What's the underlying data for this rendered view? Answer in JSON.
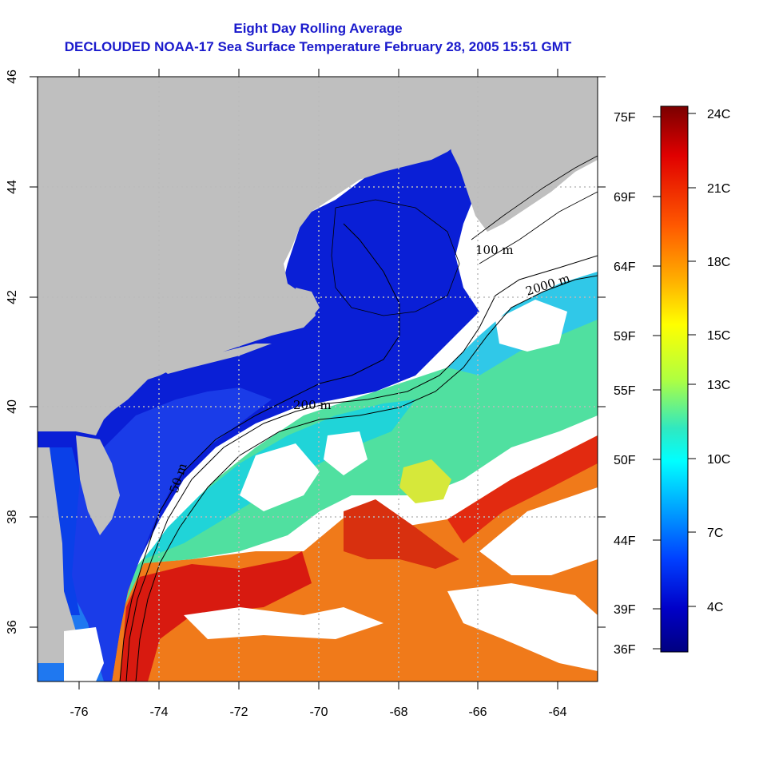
{
  "title_line1": "Eight Day Rolling Average",
  "title_line2": "DECLOUDED NOAA-17 Sea Surface Temperature February 28, 2005 15:51 GMT",
  "map": {
    "lon_range": [
      -77,
      -63
    ],
    "lat_range": [
      35,
      46
    ],
    "x_ticks": [
      "-76",
      "-74",
      "-72",
      "-70",
      "-68",
      "-66",
      "-64"
    ],
    "y_ticks": [
      "36",
      "38",
      "40",
      "42",
      "44",
      "46"
    ],
    "contour_labels": [
      "50 m",
      "200 m",
      "2000 m",
      "100 m"
    ],
    "colors": {
      "land": "#bfbfbf",
      "cloud": "#ffffff",
      "cold_water": "#0a1fd6",
      "grid": "#bbbbbb"
    }
  },
  "colorbar": {
    "fahrenheit_labels": [
      "75F",
      "69F",
      "64F",
      "59F",
      "55F",
      "50F",
      "44F",
      "39F",
      "36F"
    ],
    "celsius_labels": [
      "24C",
      "21C",
      "18C",
      "15C",
      "13C",
      "10C",
      "7C",
      "4C"
    ],
    "gradient_stops": [
      "#7a0000",
      "#e00000",
      "#ff5a00",
      "#ffb000",
      "#ffff00",
      "#b0ff40",
      "#30e8c0",
      "#00ffff",
      "#00a0ff",
      "#0040ff",
      "#0000c8",
      "#000080"
    ]
  }
}
